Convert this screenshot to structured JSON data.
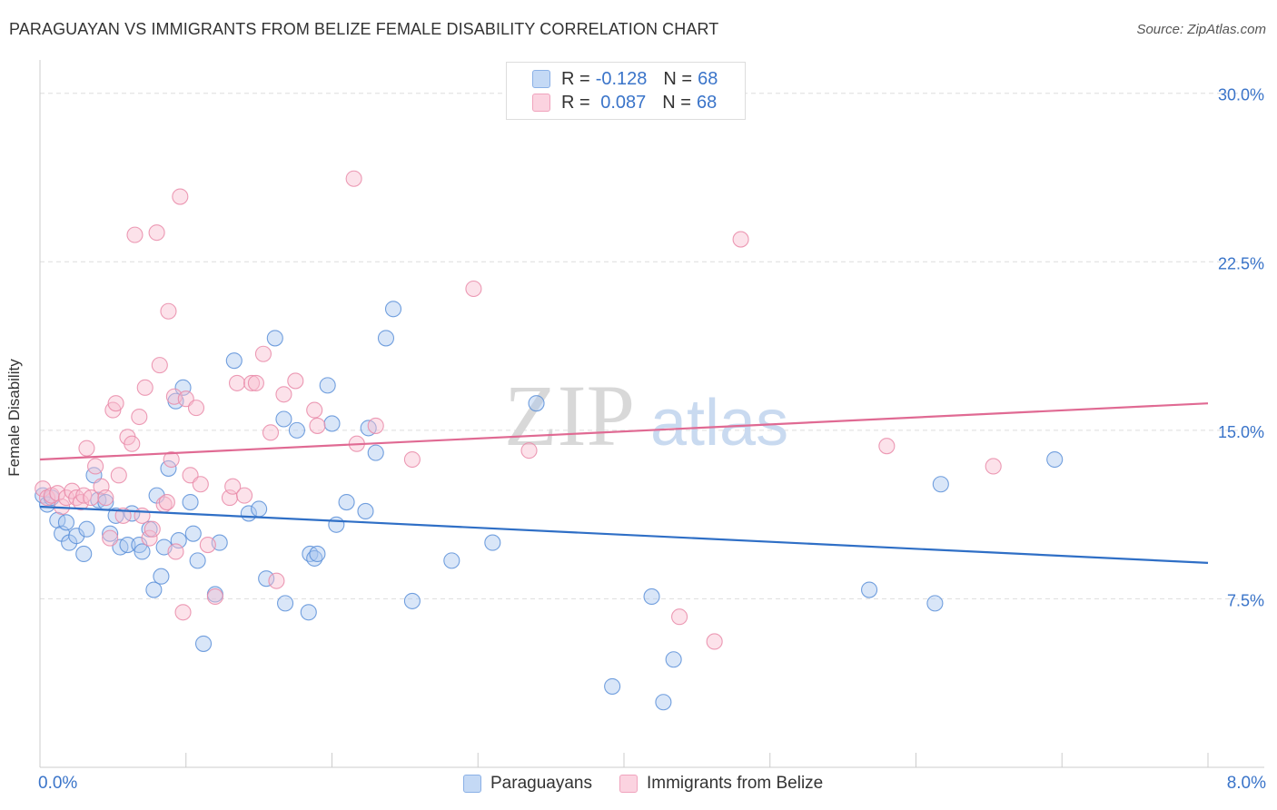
{
  "title": "PARAGUAYAN VS IMMIGRANTS FROM BELIZE FEMALE DISABILITY CORRELATION CHART",
  "source": "Source: ZipAtlas.com",
  "watermark": {
    "zip": "ZIP",
    "atlas": "atlas"
  },
  "colors": {
    "blue_fill": "#aac8f0",
    "blue_stroke": "#5a8fd8",
    "blue_line": "#2f6fc6",
    "pink_fill": "#f8bfd1",
    "pink_stroke": "#e98aa8",
    "pink_line": "#e06a93",
    "axis_label": "#3a74c9",
    "grid": "#dddddd"
  },
  "legend": {
    "rows": [
      {
        "r_label": "R = ",
        "r_value": "-0.128",
        "n_label": "N = ",
        "n_value": "68"
      },
      {
        "r_label": "R = ",
        "r_value": " 0.087",
        "n_label": "N = ",
        "n_value": "68"
      }
    ]
  },
  "bottom_legend": [
    "Paraguayans",
    "Immigrants from Belize"
  ],
  "x_axis": {
    "min_label": "0.0%",
    "max_label": "8.0%"
  },
  "chart_data": {
    "type": "scatter",
    "title": "PARAGUAYAN VS IMMIGRANTS FROM BELIZE FEMALE DISABILITY CORRELATION CHART",
    "xlabel": "",
    "ylabel": "Female Disability",
    "xlim": [
      0,
      8
    ],
    "ylim": [
      0,
      31
    ],
    "y_ticks": [
      7.5,
      15.0,
      22.5,
      30.0
    ],
    "y_tick_labels": [
      "7.5%",
      "15.0%",
      "22.5%",
      "30.0%"
    ],
    "grid": true,
    "legend_position": "top-center",
    "series": [
      {
        "name": "Paraguayans",
        "color": "#aac8f0",
        "trend": {
          "x": [
            0,
            8
          ],
          "y": [
            11.6,
            9.1
          ]
        },
        "points": [
          [
            0.02,
            12.1
          ],
          [
            0.05,
            11.7
          ],
          [
            0.08,
            12.0
          ],
          [
            0.12,
            11.0
          ],
          [
            0.15,
            10.4
          ],
          [
            0.18,
            10.9
          ],
          [
            0.2,
            10.0
          ],
          [
            0.25,
            10.3
          ],
          [
            0.3,
            9.5
          ],
          [
            0.32,
            10.6
          ],
          [
            0.37,
            13.0
          ],
          [
            0.4,
            11.9
          ],
          [
            0.45,
            11.8
          ],
          [
            0.48,
            10.4
          ],
          [
            0.52,
            11.2
          ],
          [
            0.55,
            9.8
          ],
          [
            0.6,
            9.9
          ],
          [
            0.63,
            11.3
          ],
          [
            0.68,
            9.9
          ],
          [
            0.7,
            9.6
          ],
          [
            0.75,
            10.6
          ],
          [
            0.78,
            7.9
          ],
          [
            0.8,
            12.1
          ],
          [
            0.83,
            8.5
          ],
          [
            0.85,
            9.8
          ],
          [
            0.88,
            13.3
          ],
          [
            0.93,
            16.3
          ],
          [
            0.95,
            10.1
          ],
          [
            0.98,
            16.9
          ],
          [
            1.03,
            11.8
          ],
          [
            1.05,
            10.4
          ],
          [
            1.08,
            9.2
          ],
          [
            1.12,
            5.5
          ],
          [
            1.2,
            7.7
          ],
          [
            1.23,
            10.0
          ],
          [
            1.33,
            18.1
          ],
          [
            1.43,
            11.3
          ],
          [
            1.5,
            11.5
          ],
          [
            1.55,
            8.4
          ],
          [
            1.61,
            19.1
          ],
          [
            1.67,
            15.5
          ],
          [
            1.68,
            7.3
          ],
          [
            1.76,
            15.0
          ],
          [
            1.84,
            6.9
          ],
          [
            1.85,
            9.5
          ],
          [
            1.88,
            9.3
          ],
          [
            1.9,
            9.5
          ],
          [
            1.97,
            17.0
          ],
          [
            2.0,
            15.3
          ],
          [
            2.03,
            10.8
          ],
          [
            2.1,
            11.8
          ],
          [
            2.23,
            11.4
          ],
          [
            2.25,
            15.1
          ],
          [
            2.3,
            14.0
          ],
          [
            2.37,
            19.1
          ],
          [
            2.42,
            20.4
          ],
          [
            2.55,
            7.4
          ],
          [
            2.82,
            9.2
          ],
          [
            3.1,
            10.0
          ],
          [
            3.4,
            16.2
          ],
          [
            3.92,
            3.6
          ],
          [
            4.19,
            7.6
          ],
          [
            4.27,
            2.9
          ],
          [
            4.34,
            4.8
          ],
          [
            5.68,
            7.9
          ],
          [
            6.13,
            7.3
          ],
          [
            6.17,
            12.6
          ],
          [
            6.95,
            13.7
          ]
        ]
      },
      {
        "name": "Immigrants from Belize",
        "color": "#f8bfd1",
        "trend": {
          "x": [
            0,
            8
          ],
          "y": [
            13.7,
            16.2
          ]
        },
        "points": [
          [
            0.02,
            12.4
          ],
          [
            0.05,
            12.0
          ],
          [
            0.08,
            12.1
          ],
          [
            0.12,
            12.2
          ],
          [
            0.15,
            11.6
          ],
          [
            0.18,
            12.0
          ],
          [
            0.22,
            12.3
          ],
          [
            0.25,
            12.0
          ],
          [
            0.28,
            11.8
          ],
          [
            0.3,
            12.1
          ],
          [
            0.32,
            14.2
          ],
          [
            0.35,
            12.0
          ],
          [
            0.38,
            13.4
          ],
          [
            0.42,
            12.5
          ],
          [
            0.45,
            12.0
          ],
          [
            0.48,
            10.2
          ],
          [
            0.5,
            15.9
          ],
          [
            0.52,
            16.2
          ],
          [
            0.54,
            13.0
          ],
          [
            0.57,
            11.2
          ],
          [
            0.6,
            14.7
          ],
          [
            0.63,
            14.4
          ],
          [
            0.65,
            23.7
          ],
          [
            0.68,
            15.6
          ],
          [
            0.7,
            11.2
          ],
          [
            0.72,
            16.9
          ],
          [
            0.75,
            10.2
          ],
          [
            0.77,
            10.6
          ],
          [
            0.8,
            23.8
          ],
          [
            0.82,
            17.9
          ],
          [
            0.85,
            11.7
          ],
          [
            0.87,
            11.8
          ],
          [
            0.88,
            20.3
          ],
          [
            0.9,
            13.7
          ],
          [
            0.92,
            16.5
          ],
          [
            0.93,
            9.6
          ],
          [
            0.96,
            25.4
          ],
          [
            0.98,
            6.9
          ],
          [
            1.0,
            16.4
          ],
          [
            1.03,
            13.0
          ],
          [
            1.07,
            16.0
          ],
          [
            1.1,
            12.6
          ],
          [
            1.15,
            9.9
          ],
          [
            1.2,
            7.6
          ],
          [
            1.3,
            12.0
          ],
          [
            1.32,
            12.5
          ],
          [
            1.35,
            17.1
          ],
          [
            1.4,
            12.1
          ],
          [
            1.45,
            17.1
          ],
          [
            1.48,
            17.1
          ],
          [
            1.53,
            18.4
          ],
          [
            1.58,
            14.9
          ],
          [
            1.62,
            8.3
          ],
          [
            1.67,
            16.6
          ],
          [
            1.75,
            17.2
          ],
          [
            1.88,
            15.9
          ],
          [
            1.9,
            15.2
          ],
          [
            2.15,
            26.2
          ],
          [
            2.17,
            14.4
          ],
          [
            2.3,
            15.2
          ],
          [
            2.55,
            13.7
          ],
          [
            2.97,
            21.3
          ],
          [
            3.35,
            14.1
          ],
          [
            4.38,
            6.7
          ],
          [
            4.62,
            5.6
          ],
          [
            4.8,
            23.5
          ],
          [
            5.8,
            14.3
          ],
          [
            6.53,
            13.4
          ]
        ]
      }
    ]
  }
}
